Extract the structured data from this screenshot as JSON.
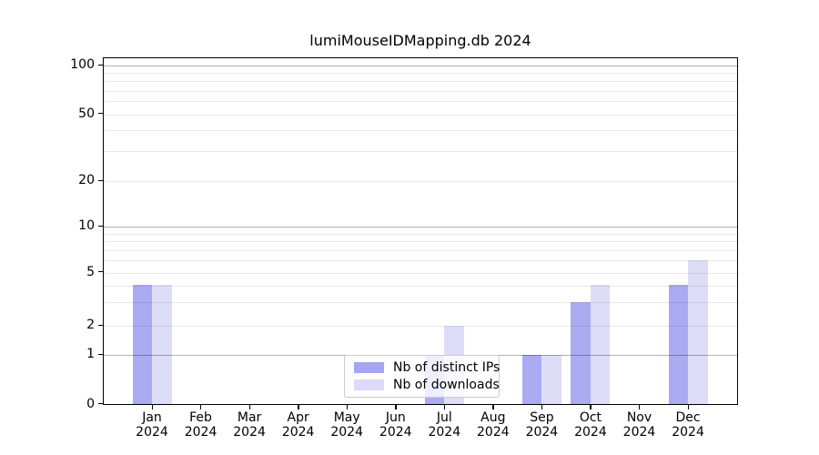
{
  "title": "lumiMouseIDMapping.db 2024",
  "chart_data": {
    "type": "bar",
    "title": "lumiMouseIDMapping.db 2024",
    "categories": [
      "Jan",
      "Feb",
      "Mar",
      "Apr",
      "May",
      "Jun",
      "Jul",
      "Aug",
      "Sep",
      "Oct",
      "Nov",
      "Dec"
    ],
    "year": "2024",
    "series": [
      {
        "name": "Nb of distinct IPs",
        "color": "#a6a6f1",
        "values": [
          4,
          0,
          0,
          0,
          0,
          0,
          1,
          0,
          1,
          3,
          0,
          4
        ]
      },
      {
        "name": "Nb of downloads",
        "color": "#dbdbf7",
        "values": [
          4,
          0,
          0,
          0,
          0,
          0,
          2,
          0,
          1,
          4,
          0,
          6
        ]
      }
    ],
    "y_axis": {
      "scale": "log-like with linear 0-1 segment",
      "tick_labels": [
        "100",
        "50",
        "20",
        "10",
        "5",
        "2",
        "1",
        "0"
      ],
      "tick_values": [
        100,
        50,
        20,
        10,
        5,
        2,
        1,
        0
      ],
      "grid_values_light": [
        2,
        3,
        4,
        5,
        6,
        7,
        8,
        9,
        20,
        30,
        40,
        50,
        60,
        70,
        80,
        90
      ],
      "grid_values_emphasized": [
        1,
        10,
        100
      ],
      "ylim": [
        0,
        100
      ]
    },
    "x_axis": {
      "tick_label_line2": "2024"
    },
    "legend": {
      "position": "lower center",
      "entries": [
        "Nb of distinct IPs",
        "Nb of downloads"
      ]
    },
    "grid": true
  },
  "colors": {
    "bar_distinct_ips": "#a6a6f1",
    "bar_downloads": "#dbdbf7",
    "grid_minor": "#e9e9e9",
    "grid_major": "#b3b3b3",
    "spine": "#000000",
    "background": "#ffffff"
  }
}
